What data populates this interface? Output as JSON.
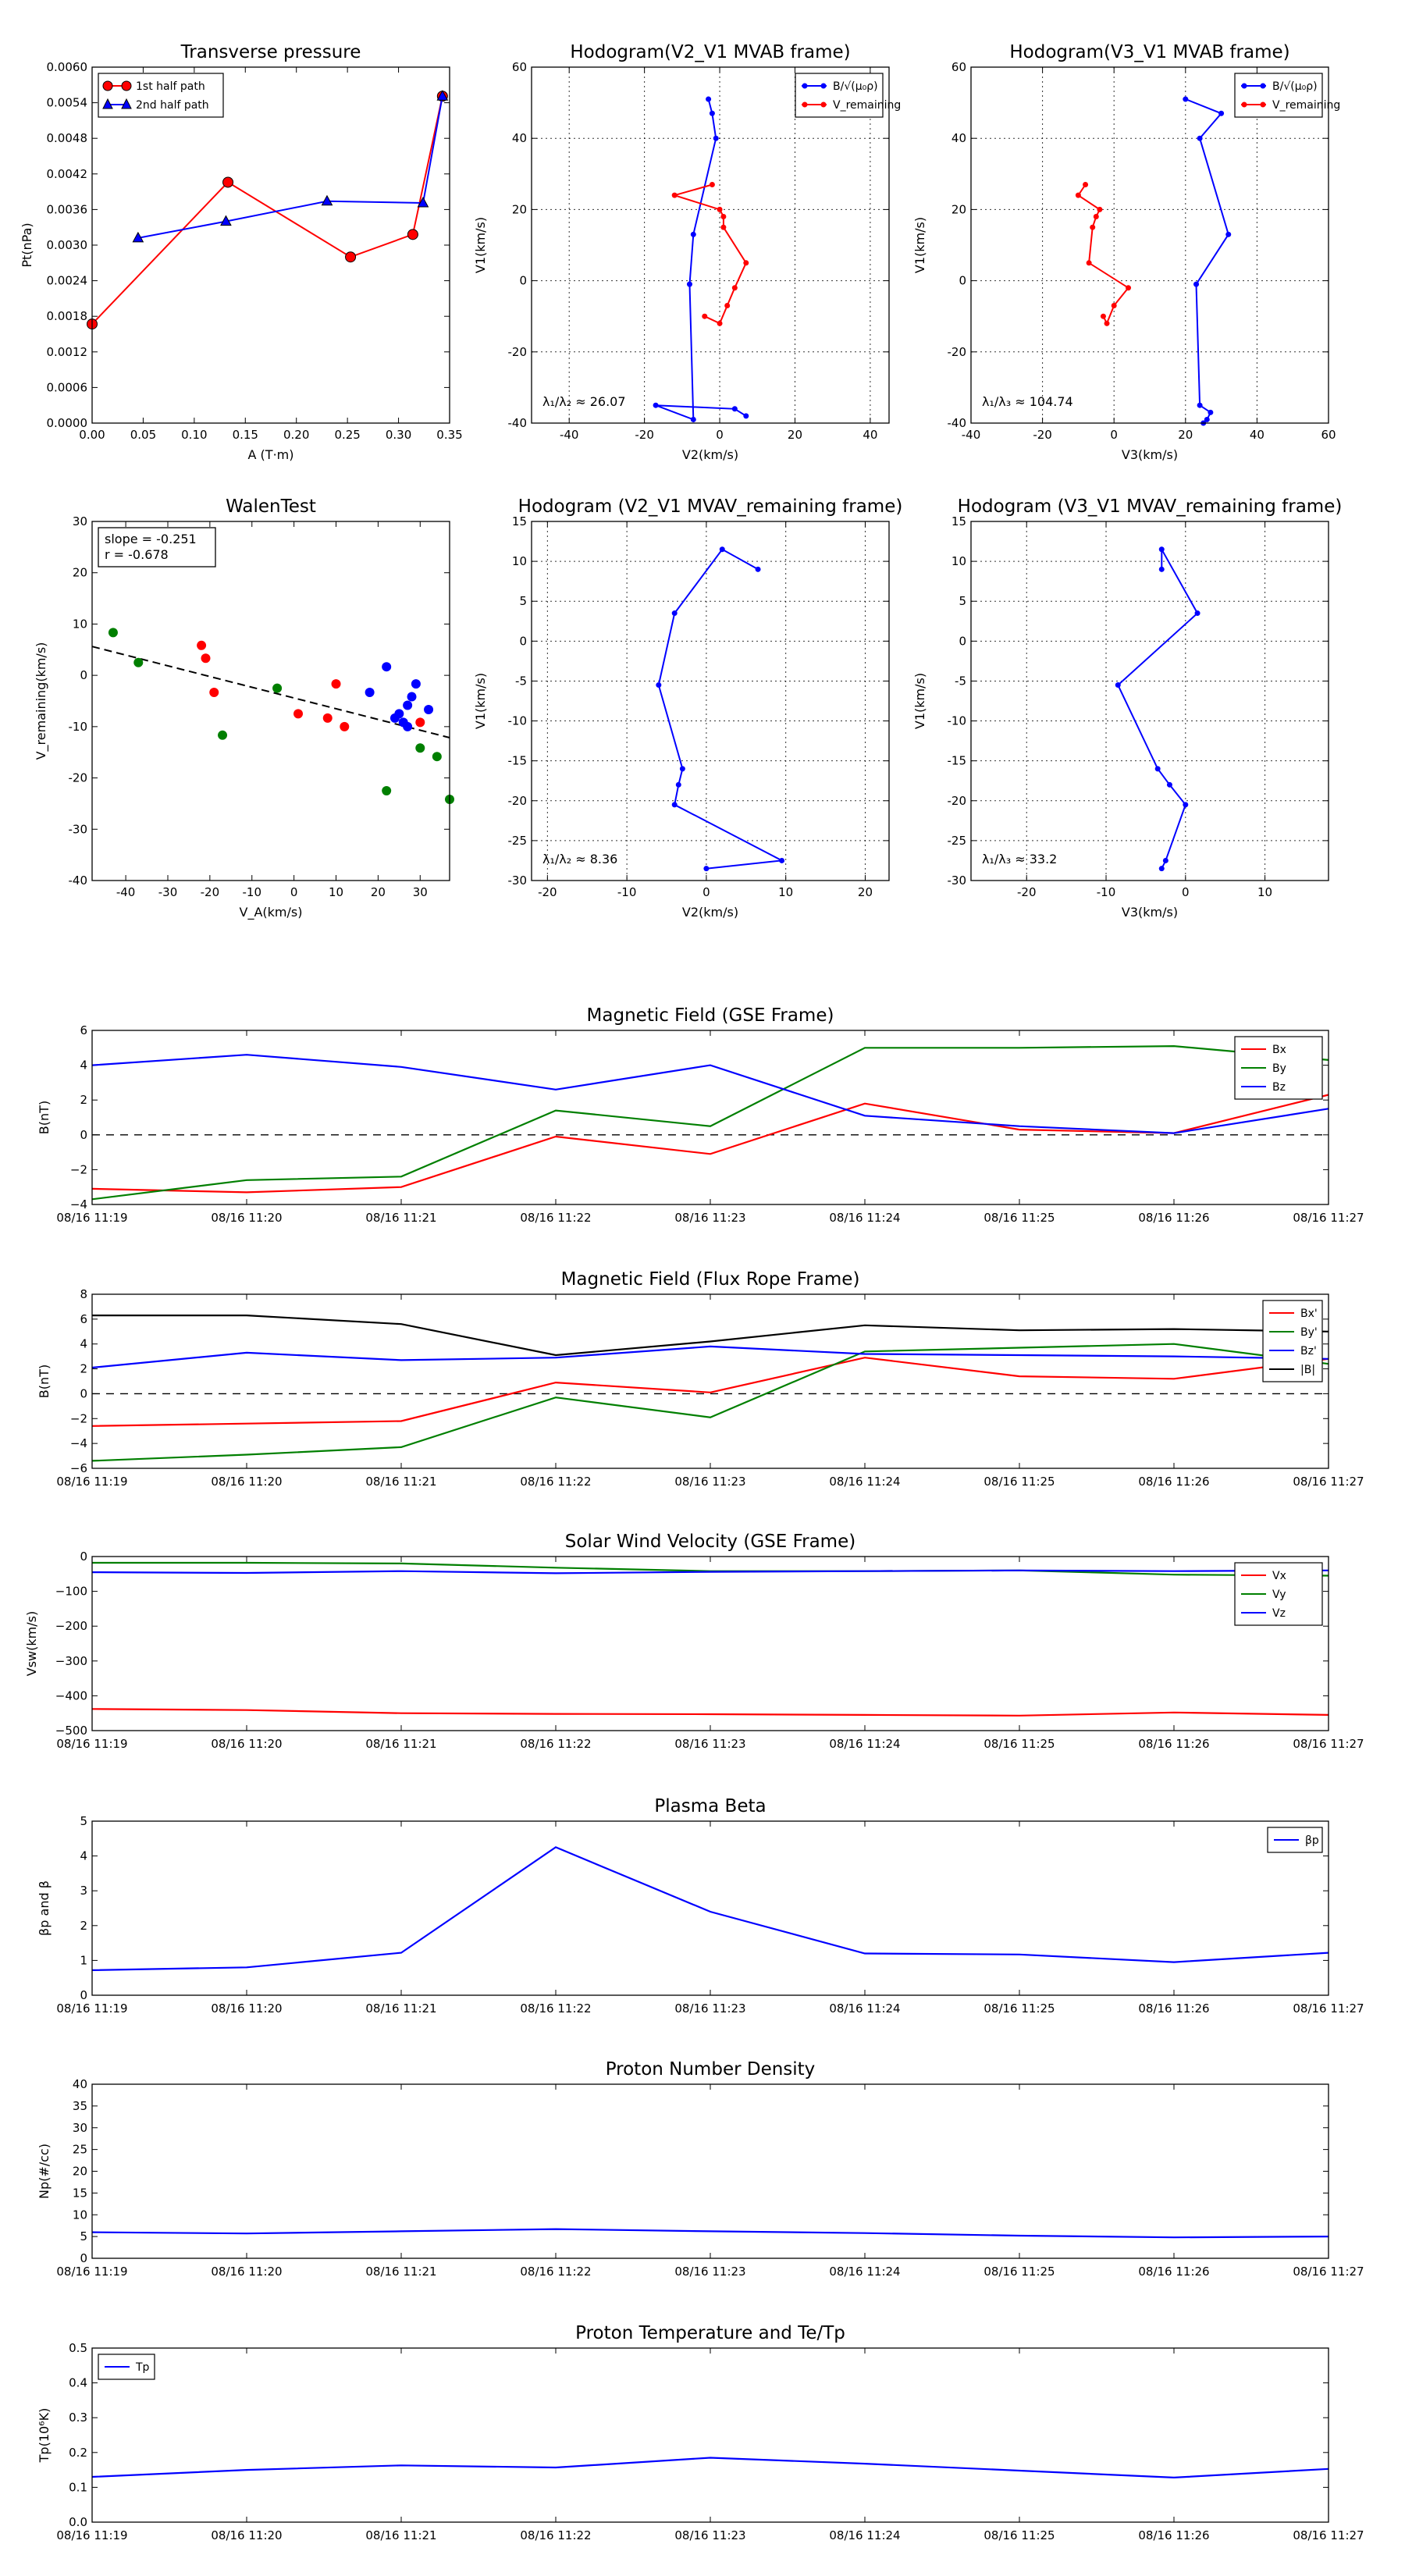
{
  "colors": {
    "red": "#ff0000",
    "green": "#007f00",
    "blue": "#0000ff",
    "black": "#000000",
    "grid": "#000000"
  },
  "chart_data": [
    {
      "id": "tp",
      "type": "line",
      "title": "Transverse pressure",
      "xlabel": "A (T·m)",
      "ylabel": "Pt(nPa)",
      "xlim": [
        0,
        0.35
      ],
      "ylim": [
        0,
        0.006
      ],
      "xticks": [
        "0.00",
        "0.05",
        "0.10",
        "0.15",
        "0.20",
        "0.25",
        "0.30",
        "0.35"
      ],
      "yticks": [
        "0.0000",
        "0.0006",
        "0.0012",
        "0.0018",
        "0.0024",
        "0.0030",
        "0.0036",
        "0.0042",
        "0.0048",
        "0.0054",
        "0.0060"
      ],
      "legend": "top-left",
      "series": [
        {
          "name": "1st half path",
          "color": "red",
          "marker": "circle",
          "x": [
            0.0,
            0.133,
            0.253,
            0.314,
            0.343
          ],
          "y": [
            0.00167,
            0.00406,
            0.0028,
            0.00318,
            0.00551
          ]
        },
        {
          "name": "2nd half path",
          "color": "blue",
          "marker": "triangle",
          "x": [
            0.045,
            0.131,
            0.23,
            0.324,
            0.343
          ],
          "y": [
            0.00312,
            0.0034,
            0.00374,
            0.00371,
            0.00551
          ]
        }
      ]
    },
    {
      "id": "h21",
      "type": "line",
      "title": "Hodogram(V2_V1 MVAB frame)",
      "xlabel": "V2(km/s)",
      "ylabel": "V1(km/s)",
      "xlim": [
        -50,
        45
      ],
      "ylim": [
        -40,
        60
      ],
      "xticks": [
        "-40",
        "-20",
        "0",
        "20",
        "40"
      ],
      "yticks": [
        "-40",
        "-20",
        "0",
        "20",
        "40",
        "60"
      ],
      "grid": true,
      "legend": "top-right",
      "annotation": "λ₁/λ₂ ≈ 26.07",
      "series": [
        {
          "name": "B/√(μ₀ρ)",
          "color": "blue",
          "marker": "dot",
          "x": [
            -3,
            -2,
            -1,
            -7,
            -8,
            -7,
            -17,
            4,
            7
          ],
          "y": [
            51,
            47,
            40,
            13,
            -1,
            -39,
            -35,
            -36,
            -38
          ]
        },
        {
          "name": "V_remaining",
          "color": "red",
          "marker": "dot",
          "x": [
            -2,
            -12,
            0,
            1,
            1,
            7,
            4,
            2,
            0,
            -4
          ],
          "y": [
            27,
            24,
            20,
            18,
            15,
            5,
            -2,
            -7,
            -12,
            -10
          ]
        }
      ]
    },
    {
      "id": "h31",
      "type": "line",
      "title": "Hodogram(V3_V1 MVAB frame)",
      "xlabel": "V3(km/s)",
      "ylabel": "V1(km/s)",
      "xlim": [
        -40,
        60
      ],
      "ylim": [
        -40,
        60
      ],
      "xticks": [
        "-40",
        "-20",
        "0",
        "20",
        "40",
        "60"
      ],
      "yticks": [
        "-40",
        "-20",
        "0",
        "20",
        "40",
        "60"
      ],
      "grid": true,
      "legend": "top-right",
      "annotation": "λ₁/λ₃ ≈ 104.74",
      "series": [
        {
          "name": "B/√(μ₀ρ)",
          "color": "blue",
          "marker": "dot",
          "x": [
            20,
            30,
            24,
            32,
            23,
            24,
            27,
            26,
            25
          ],
          "y": [
            51,
            47,
            40,
            13,
            -1,
            -35,
            -37,
            -39,
            -40
          ]
        },
        {
          "name": "V_remaining",
          "color": "red",
          "marker": "dot",
          "x": [
            -8,
            -10,
            -4,
            -5,
            -6,
            -7,
            4,
            0,
            -2,
            -3
          ],
          "y": [
            27,
            24,
            20,
            18,
            15,
            5,
            -2,
            -7,
            -12,
            -10
          ]
        }
      ]
    },
    {
      "id": "walen",
      "type": "scatter",
      "title": "WalenTest",
      "xlabel": "V_A(km/s)",
      "ylabel": "V_remaining(km/s)",
      "xlim": [
        -48,
        37
      ],
      "ylim": [
        -47,
        37
      ],
      "xticks": [
        "-40",
        "-30",
        "-20",
        "-10",
        "0",
        "10",
        "20",
        "30"
      ],
      "yticks": [
        "-40",
        "-30",
        "-20",
        "-10",
        "0",
        "10",
        "20",
        "30"
      ],
      "textbox": [
        "slope = -0.251",
        "r = -0.678"
      ],
      "fit": {
        "slope": -0.251,
        "intercept": -4.3
      },
      "series": [
        {
          "color": "green",
          "x": [
            -43,
            -37,
            -4,
            -17,
            22,
            30,
            34,
            37
          ],
          "y": [
            11,
            4,
            -2,
            -13,
            -26,
            -16,
            -18,
            -28
          ]
        },
        {
          "color": "red",
          "x": [
            -22,
            -21,
            -19,
            1,
            8,
            10,
            12,
            30
          ],
          "y": [
            8,
            5,
            -3,
            -8,
            -9,
            -1,
            -11,
            -10
          ]
        },
        {
          "color": "blue",
          "x": [
            18,
            22,
            24,
            26,
            27,
            28,
            29,
            25,
            27,
            32
          ],
          "y": [
            -3,
            3,
            -9,
            -10,
            -6,
            -4,
            -1,
            -8,
            -11,
            -7
          ]
        }
      ]
    },
    {
      "id": "hr21",
      "type": "line",
      "title": "Hodogram (V2_V1 MVAV_remaining frame)",
      "xlabel": "V2(km/s)",
      "ylabel": "V1(km/s)",
      "xlim": [
        -22,
        23
      ],
      "ylim": [
        -30,
        15
      ],
      "xticks": [
        "-20",
        "-10",
        "0",
        "10",
        "20"
      ],
      "yticks": [
        "-30",
        "-25",
        "-20",
        "-15",
        "-10",
        "-5",
        "0",
        "5",
        "10",
        "15"
      ],
      "grid": true,
      "annotation": "λ₁/λ₂ ≈ 8.36",
      "series": [
        {
          "color": "blue",
          "marker": "dot",
          "x": [
            6.5,
            2,
            -4,
            -6,
            -3,
            -3.5,
            -4,
            9.5,
            0
          ],
          "y": [
            9,
            11.5,
            3.5,
            -5.5,
            -16,
            -18,
            -20.5,
            -27.5,
            -28.5
          ]
        }
      ]
    },
    {
      "id": "hr31",
      "type": "line",
      "title": "Hodogram (V3_V1 MVAV_remaining frame)",
      "xlabel": "V3(km/s)",
      "ylabel": "V1(km/s)",
      "xlim": [
        -27,
        18
      ],
      "ylim": [
        -30,
        15
      ],
      "xticks": [
        "-20",
        "-10",
        "0",
        "10"
      ],
      "yticks": [
        "-30",
        "-25",
        "-20",
        "-15",
        "-10",
        "-5",
        "0",
        "5",
        "10",
        "15"
      ],
      "grid": true,
      "annotation": "λ₁/λ₃ ≈ 33.2",
      "series": [
        {
          "color": "blue",
          "marker": "dot",
          "x": [
            -3,
            -3,
            1.5,
            -8.5,
            -3.5,
            -2,
            0,
            -2.5,
            -3
          ],
          "y": [
            9,
            11.5,
            3.5,
            -5.5,
            -16,
            -18,
            -20.5,
            -27.5,
            -28.5
          ]
        }
      ]
    },
    {
      "id": "bgse",
      "type": "line",
      "title": "Magnetic Field (GSE Frame)",
      "ylabel": "B(nT)",
      "ylim": [
        -4,
        6
      ],
      "yticks": [
        "−4",
        "−2",
        "0",
        "2",
        "4",
        "6"
      ],
      "x": [
        "08/16 11:19",
        "08/16 11:20",
        "08/16 11:21",
        "08/16 11:22",
        "08/16 11:23",
        "08/16 11:24",
        "08/16 11:25",
        "08/16 11:26",
        "08/16 11:27"
      ],
      "zero_line": true,
      "legend": "top-right",
      "series": [
        {
          "name": "Bx",
          "color": "red",
          "values": [
            -3.1,
            -3.3,
            -3.0,
            -0.1,
            -1.1,
            1.8,
            0.3,
            0.1,
            2.3
          ]
        },
        {
          "name": "By",
          "color": "green",
          "values": [
            -3.7,
            -2.6,
            -2.4,
            1.4,
            0.5,
            5.0,
            5.0,
            5.1,
            4.3
          ]
        },
        {
          "name": "Bz",
          "color": "blue",
          "values": [
            4.0,
            4.6,
            3.9,
            2.6,
            4.0,
            1.1,
            0.5,
            0.1,
            1.5
          ]
        }
      ]
    },
    {
      "id": "bfr",
      "type": "line",
      "title": "Magnetic Field (Flux Rope Frame)",
      "ylabel": "B(nT)",
      "ylim": [
        -6,
        8
      ],
      "yticks": [
        "−6",
        "−4",
        "−2",
        "0",
        "2",
        "4",
        "6",
        "8"
      ],
      "x": [
        "08/16 11:19",
        "08/16 11:20",
        "08/16 11:21",
        "08/16 11:22",
        "08/16 11:23",
        "08/16 11:24",
        "08/16 11:25",
        "08/16 11:26",
        "08/16 11:27"
      ],
      "zero_line": true,
      "legend": "top-right",
      "series": [
        {
          "name": "Bx'",
          "color": "red",
          "values": [
            -2.6,
            -2.4,
            -2.2,
            0.9,
            0.1,
            2.9,
            1.4,
            1.2,
            2.8
          ]
        },
        {
          "name": "By'",
          "color": "green",
          "values": [
            -5.4,
            -4.9,
            -4.3,
            -0.3,
            -1.9,
            3.4,
            3.7,
            4.0,
            2.4
          ]
        },
        {
          "name": "Bz'",
          "color": "blue",
          "values": [
            2.1,
            3.3,
            2.7,
            2.9,
            3.8,
            3.2,
            3.1,
            3.0,
            2.8
          ]
        },
        {
          "name": "|B|",
          "color": "black",
          "values": [
            6.3,
            6.3,
            5.6,
            3.1,
            4.2,
            5.5,
            5.1,
            5.2,
            5.0
          ]
        }
      ]
    },
    {
      "id": "vsw",
      "type": "line",
      "title": "Solar Wind Velocity (GSE Frame)",
      "ylabel": "Vsw(km/s)",
      "ylim": [
        -500,
        0
      ],
      "yticks": [
        "−500",
        "−400",
        "−300",
        "−200",
        "−100",
        "0"
      ],
      "x": [
        "08/16 11:19",
        "08/16 11:20",
        "08/16 11:21",
        "08/16 11:22",
        "08/16 11:23",
        "08/16 11:24",
        "08/16 11:25",
        "08/16 11:26",
        "08/16 11:27"
      ],
      "legend": "top-right",
      "series": [
        {
          "name": "Vx",
          "color": "red",
          "values": [
            -438,
            -441,
            -450,
            -452,
            -453,
            -455,
            -457,
            -448,
            -455
          ]
        },
        {
          "name": "Vy",
          "color": "green",
          "values": [
            -18,
            -18,
            -20,
            -32,
            -42,
            -42,
            -40,
            -52,
            -55
          ]
        },
        {
          "name": "Vz",
          "color": "blue",
          "values": [
            -45,
            -47,
            -42,
            -48,
            -44,
            -42,
            -40,
            -42,
            -40
          ]
        }
      ]
    },
    {
      "id": "beta",
      "type": "line",
      "title": "Plasma Beta",
      "ylabel": "βp and β",
      "ylim": [
        0,
        5
      ],
      "yticks": [
        "0",
        "1",
        "2",
        "3",
        "4",
        "5"
      ],
      "x": [
        "08/16 11:19",
        "08/16 11:20",
        "08/16 11:21",
        "08/16 11:22",
        "08/16 11:23",
        "08/16 11:24",
        "08/16 11:25",
        "08/16 11:26",
        "08/16 11:27"
      ],
      "legend": "top-right",
      "series": [
        {
          "name": "βp",
          "color": "blue",
          "values": [
            0.72,
            0.8,
            1.22,
            4.25,
            2.4,
            1.2,
            1.17,
            0.95,
            1.22
          ]
        }
      ]
    },
    {
      "id": "np",
      "type": "line",
      "title": "Proton Number Density",
      "ylabel": "Np(#/cc)",
      "ylim": [
        0,
        40
      ],
      "yticks": [
        "0",
        "5",
        "10",
        "15",
        "20",
        "25",
        "30",
        "35",
        "40"
      ],
      "x": [
        "08/16 11:19",
        "08/16 11:20",
        "08/16 11:21",
        "08/16 11:22",
        "08/16 11:23",
        "08/16 11:24",
        "08/16 11:25",
        "08/16 11:26",
        "08/16 11:27"
      ],
      "series": [
        {
          "color": "blue",
          "values": [
            6.0,
            5.7,
            6.2,
            6.7,
            6.2,
            5.8,
            5.2,
            4.8,
            5.0
          ]
        }
      ]
    },
    {
      "id": "tpr",
      "type": "line",
      "title": "Proton Temperature and Te/Tp",
      "ylabel": "Tp(10⁶K)",
      "ylim": [
        0,
        0.5
      ],
      "yticks": [
        "0.0",
        "0.1",
        "0.2",
        "0.3",
        "0.4",
        "0.5"
      ],
      "x": [
        "08/16 11:19",
        "08/16 11:20",
        "08/16 11:21",
        "08/16 11:22",
        "08/16 11:23",
        "08/16 11:24",
        "08/16 11:25",
        "08/16 11:26",
        "08/16 11:27"
      ],
      "legend": "top-left",
      "series": [
        {
          "name": "Tp",
          "color": "blue",
          "values": [
            0.13,
            0.15,
            0.163,
            0.157,
            0.185,
            0.168,
            0.148,
            0.128,
            0.153
          ]
        }
      ]
    }
  ]
}
